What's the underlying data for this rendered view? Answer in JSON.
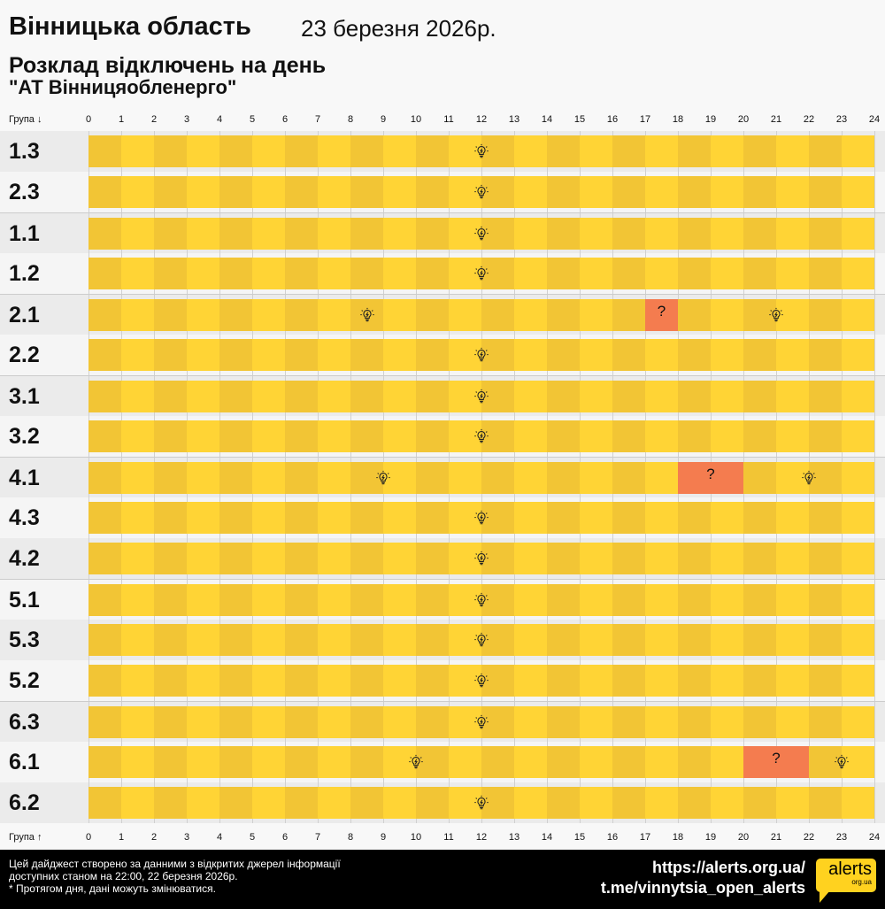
{
  "header": {
    "title": "Вінницька область",
    "date": "23 березня 2026р.",
    "subtitle": "Розклад відключень на день",
    "company": "\"АТ Вінницяобленерго\""
  },
  "axis": {
    "top_label": "Група ↓",
    "bottom_label": "Група ↑",
    "hours": [
      "0",
      "1",
      "2",
      "3",
      "4",
      "5",
      "6",
      "7",
      "8",
      "9",
      "10",
      "11",
      "12",
      "13",
      "14",
      "15",
      "16",
      "17",
      "18",
      "19",
      "20",
      "21",
      "22",
      "23",
      "24"
    ]
  },
  "colors": {
    "on_dark": "#f2c535",
    "on_light": "#ffd435",
    "maybe": "#f47c4f"
  },
  "legend_icons": {
    "on": "lightbulb-icon",
    "maybe": "question-mark"
  },
  "groups": [
    {
      "name": "1.3",
      "maybe": []
    },
    {
      "name": "2.3",
      "maybe": []
    },
    {
      "name": "1.1",
      "maybe": []
    },
    {
      "name": "1.2",
      "maybe": []
    },
    {
      "name": "2.1",
      "maybe": [
        17
      ]
    },
    {
      "name": "2.2",
      "maybe": []
    },
    {
      "name": "3.1",
      "maybe": []
    },
    {
      "name": "3.2",
      "maybe": []
    },
    {
      "name": "4.1",
      "maybe": [
        18,
        19
      ]
    },
    {
      "name": "4.3",
      "maybe": []
    },
    {
      "name": "4.2",
      "maybe": []
    },
    {
      "name": "5.1",
      "maybe": []
    },
    {
      "name": "5.3",
      "maybe": []
    },
    {
      "name": "5.2",
      "maybe": []
    },
    {
      "name": "6.3",
      "maybe": []
    },
    {
      "name": "6.1",
      "maybe": [
        20,
        21
      ]
    },
    {
      "name": "6.2",
      "maybe": []
    }
  ],
  "maybe_symbol": "?",
  "footer": {
    "note1": "Цей дайджест створено за данними з відкритих джерел інформації",
    "note2": "доступних станом на 22:00, 22 березня 2026р.",
    "note3": "* Протягом дня, дані можуть змінюватися.",
    "link1": "https://alerts.org.ua/",
    "link2": "t.me/vinnytsia_open_alerts",
    "logo_main": "alerts",
    "logo_sub": "org.ua"
  }
}
